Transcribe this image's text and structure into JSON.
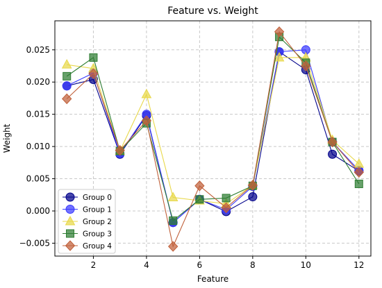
{
  "chart_data": {
    "type": "line",
    "title": "Feature vs. Weight",
    "xlabel": "Feature",
    "ylabel": "Weight",
    "x": [
      1,
      2,
      3,
      4,
      5,
      6,
      7,
      8,
      9,
      10,
      11,
      12
    ],
    "xlim": [
      0.55,
      12.45
    ],
    "ylim": [
      -0.007,
      0.0295
    ],
    "xticks": [
      2,
      4,
      6,
      8,
      10,
      12
    ],
    "xtick_labels": [
      "2",
      "4",
      "6",
      "8",
      "10",
      "12"
    ],
    "yticks": [
      -0.005,
      0.0,
      0.005,
      0.01,
      0.015,
      0.02,
      0.025
    ],
    "ytick_labels": [
      "−0.005",
      "0.000",
      "0.005",
      "0.010",
      "0.015",
      "0.020",
      "0.025"
    ],
    "grid": true,
    "legend_position": "lower-left",
    "series": [
      {
        "name": "Group 0",
        "color": "#00008b",
        "marker": "circle",
        "values": [
          0.0194,
          0.0204,
          0.0088,
          0.0148,
          -0.0018,
          0.0018,
          -0.0001,
          0.0022,
          0.0247,
          0.0219,
          0.0088,
          0.0062
        ]
      },
      {
        "name": "Group 1",
        "color": "#3b3bff",
        "marker": "circle",
        "values": [
          0.0194,
          0.0214,
          0.0089,
          0.015,
          -0.0018,
          0.0018,
          0.0002,
          0.0038,
          0.0247,
          0.025,
          0.0107,
          0.0063
        ]
      },
      {
        "name": "Group 2",
        "color": "#e8d84a",
        "marker": "triangle",
        "values": [
          0.0227,
          0.0221,
          0.0093,
          0.0181,
          0.0021,
          0.0016,
          0.0011,
          0.004,
          0.0238,
          0.0238,
          0.011,
          0.0073
        ]
      },
      {
        "name": "Group 3",
        "color": "#2e7d32",
        "marker": "square",
        "values": [
          0.0209,
          0.0238,
          0.0093,
          0.0136,
          -0.0015,
          0.0018,
          0.002,
          0.0039,
          0.027,
          0.023,
          0.0107,
          0.0042
        ]
      },
      {
        "name": "Group 4",
        "color": "#c0603a",
        "marker": "diamond",
        "values": [
          0.0174,
          0.0213,
          0.0094,
          0.014,
          -0.0055,
          0.0039,
          0.0005,
          0.004,
          0.0278,
          0.0225,
          0.0107,
          0.006
        ]
      }
    ]
  }
}
